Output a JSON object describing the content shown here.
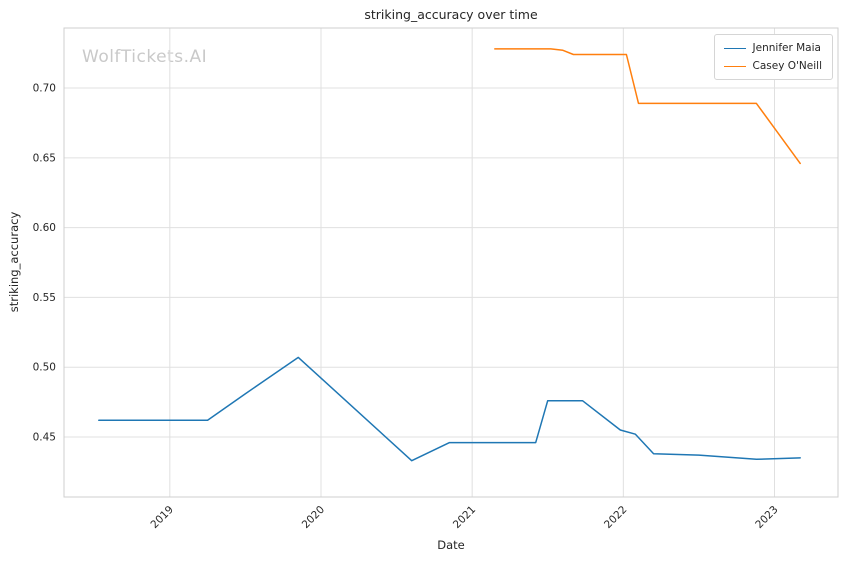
{
  "watermark": "WolfTickets.AI",
  "chart_data": {
    "type": "line",
    "title": "striking_accuracy over time",
    "xlabel": "Date",
    "ylabel": "striking_accuracy",
    "xlim": [
      2018.3,
      2023.42
    ],
    "ylim": [
      0.407,
      0.743
    ],
    "xticks": [
      2019,
      2020,
      2021,
      2022,
      2023
    ],
    "yticks": [
      0.45,
      0.5,
      0.55,
      0.6,
      0.65,
      0.7
    ],
    "grid": true,
    "legend_position": "upper right",
    "series": [
      {
        "name": "Jennifer Maia",
        "color": "#1f77b4",
        "points": [
          [
            2018.53,
            0.462
          ],
          [
            2019.25,
            0.462
          ],
          [
            2019.5,
            0.481
          ],
          [
            2019.85,
            0.507
          ],
          [
            2020.6,
            0.433
          ],
          [
            2020.85,
            0.446
          ],
          [
            2021.42,
            0.446
          ],
          [
            2021.5,
            0.476
          ],
          [
            2021.73,
            0.476
          ],
          [
            2021.98,
            0.455
          ],
          [
            2022.08,
            0.452
          ],
          [
            2022.2,
            0.438
          ],
          [
            2022.5,
            0.437
          ],
          [
            2022.88,
            0.434
          ],
          [
            2023.17,
            0.435
          ]
        ]
      },
      {
        "name": "Casey O'Neill",
        "color": "#ff7f0e",
        "points": [
          [
            2021.15,
            0.728
          ],
          [
            2021.52,
            0.728
          ],
          [
            2021.6,
            0.727
          ],
          [
            2021.67,
            0.724
          ],
          [
            2022.02,
            0.724
          ],
          [
            2022.1,
            0.689
          ],
          [
            2022.88,
            0.689
          ],
          [
            2023.17,
            0.646
          ]
        ]
      }
    ]
  }
}
